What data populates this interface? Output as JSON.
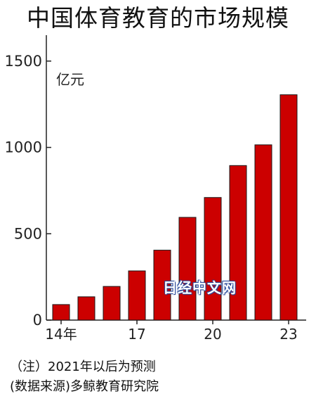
{
  "chart_data": {
    "type": "bar",
    "title": "中国体育教育的市场规模",
    "unit": "亿元",
    "x": [
      2014,
      2015,
      2016,
      2017,
      2018,
      2019,
      2020,
      2021,
      2022,
      2023
    ],
    "x_tick_labels": [
      "14年",
      "17",
      "20",
      "23"
    ],
    "x_tick_positions": [
      2014,
      2017,
      2020,
      2023
    ],
    "values": [
      90,
      135,
      195,
      285,
      405,
      595,
      710,
      895,
      1015,
      1305
    ],
    "y_ticks": [
      0,
      500,
      1000,
      1500
    ],
    "ylim": [
      0,
      1650
    ],
    "grid": false,
    "bar_color": "#cc0000"
  },
  "notes": {
    "line1": "（注）2021年以后为预测",
    "line2": "(数据来源)多鲸教育研究院"
  },
  "watermark": "日经中文网"
}
